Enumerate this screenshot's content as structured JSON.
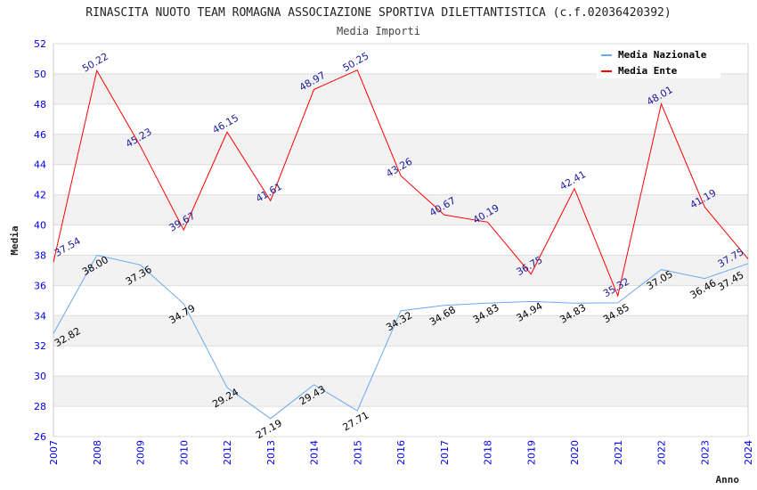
{
  "chart_data": {
    "type": "line",
    "title": "RINASCITA NUOTO TEAM ROMAGNA ASSOCIAZIONE SPORTIVA DILETTANTISTICA (c.f.02036420392)",
    "subtitle": "Media Importi",
    "xlabel": "Anno",
    "ylabel": "Media",
    "ylim": [
      26,
      52
    ],
    "yticks": [
      26,
      28,
      30,
      32,
      34,
      36,
      38,
      40,
      42,
      44,
      46,
      48,
      50,
      52
    ],
    "grid": true,
    "legend_position": "top-right",
    "categories": [
      "2007",
      "2008",
      "2009",
      "2010",
      "2012",
      "2013",
      "2014",
      "2015",
      "2016",
      "2017",
      "2018",
      "2019",
      "2020",
      "2021",
      "2022",
      "2023",
      "2024"
    ],
    "series": [
      {
        "name": "Media Nazionale",
        "color": "#6aaaf0",
        "label_color": "#000000",
        "values": [
          32.82,
          38.0,
          37.36,
          34.79,
          29.24,
          27.19,
          29.43,
          27.71,
          34.32,
          34.68,
          34.83,
          34.94,
          34.83,
          34.85,
          37.05,
          36.46,
          37.45
        ]
      },
      {
        "name": "Media Ente",
        "color": "#ff0000",
        "label_color": "#1a1a9a",
        "values": [
          37.54,
          50.22,
          45.23,
          39.67,
          46.15,
          41.61,
          48.97,
          50.25,
          43.26,
          40.67,
          40.19,
          36.75,
          42.41,
          35.32,
          48.01,
          41.19,
          37.75
        ]
      }
    ]
  }
}
